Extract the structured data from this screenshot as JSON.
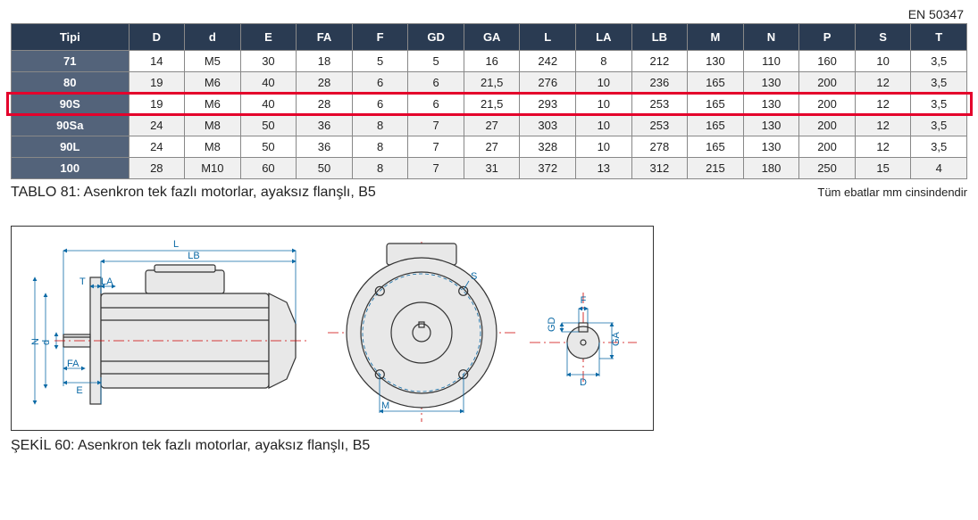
{
  "standard_label": "EN 50347",
  "table": {
    "columns": [
      "Tipi",
      "D",
      "d",
      "E",
      "FA",
      "F",
      "GD",
      "GA",
      "L",
      "LA",
      "LB",
      "M",
      "N",
      "P",
      "S",
      "T"
    ],
    "rows": [
      [
        "71",
        "14",
        "M5",
        "30",
        "18",
        "5",
        "5",
        "16",
        "242",
        "8",
        "212",
        "130",
        "110",
        "160",
        "10",
        "3,5"
      ],
      [
        "80",
        "19",
        "M6",
        "40",
        "28",
        "6",
        "6",
        "21,5",
        "276",
        "10",
        "236",
        "165",
        "130",
        "200",
        "12",
        "3,5"
      ],
      [
        "90S",
        "19",
        "M6",
        "40",
        "28",
        "6",
        "6",
        "21,5",
        "293",
        "10",
        "253",
        "165",
        "130",
        "200",
        "12",
        "3,5"
      ],
      [
        "90Sa",
        "24",
        "M8",
        "50",
        "36",
        "8",
        "7",
        "27",
        "303",
        "10",
        "253",
        "165",
        "130",
        "200",
        "12",
        "3,5"
      ],
      [
        "90L",
        "24",
        "M8",
        "50",
        "36",
        "8",
        "7",
        "27",
        "328",
        "10",
        "278",
        "165",
        "130",
        "200",
        "12",
        "3,5"
      ],
      [
        "100",
        "28",
        "M10",
        "60",
        "50",
        "8",
        "7",
        "31",
        "372",
        "13",
        "312",
        "215",
        "180",
        "250",
        "15",
        "4"
      ]
    ],
    "highlight_row_index": 2,
    "col_widths_pct": [
      12.3,
      5.85,
      5.85,
      5.85,
      5.85,
      5.85,
      5.85,
      5.85,
      5.85,
      5.85,
      5.85,
      5.85,
      5.85,
      5.85,
      5.85,
      5.85
    ],
    "header_bg": "#2a3b52",
    "rowhead_bg": "#53637a",
    "alt_bg": "#f0f0f0",
    "highlight_color": "#e4002b"
  },
  "caption_left": "TABLO 81: Asenkron tek fazlı motorlar, ayaksız flanşlı, B5",
  "caption_right": "Tüm ebatlar mm cinsindendir",
  "figure_caption": "ŞEKİL 60: Asenkron tek fazlı motorlar, ayaksız flanşlı, B5",
  "figure": {
    "labels": {
      "L": "L",
      "LB": "LB",
      "T": "T",
      "LA": "LA",
      "FA": "FA",
      "E": "E",
      "P": "P",
      "N": "N",
      "d": "d",
      "S": "S",
      "M": "M",
      "F": "F",
      "GD": "GD",
      "D": "D",
      "GA": "GA"
    },
    "dim_color": "#0c6aa6",
    "body_fill": "#e8e8e8",
    "centerline_color": "#c00"
  }
}
